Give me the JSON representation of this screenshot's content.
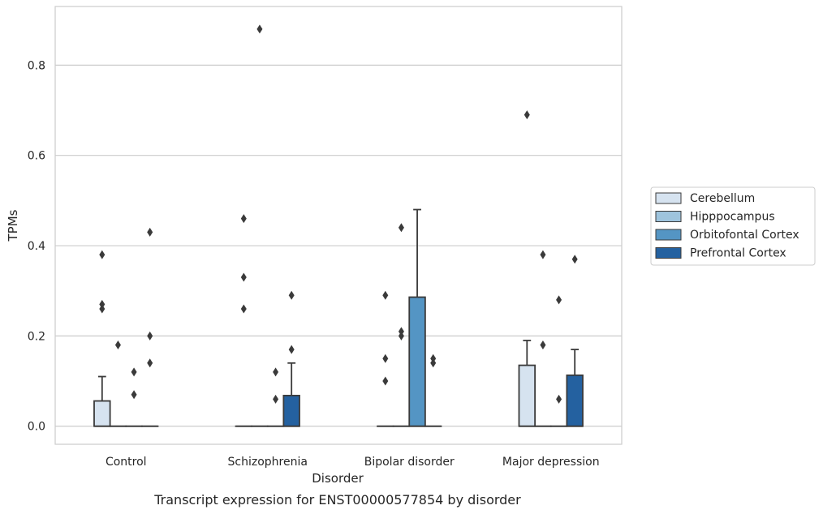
{
  "chart_data": {
    "type": "box",
    "categories": [
      "Control",
      "Schizophrenia",
      "Bipolar disorder",
      "Major depression"
    ],
    "xlabel": "Disorder",
    "ylabel": "TPMs",
    "caption": "Transcript expression for ENST00000577854 by disorder",
    "ylim": [
      -0.04,
      0.93
    ],
    "yticks": [
      0.0,
      0.2,
      0.4,
      0.6,
      0.8
    ],
    "yticks_labels": [
      "0.0",
      "0.2",
      "0.4",
      "0.6",
      "0.8"
    ],
    "grid": "horizontal",
    "legend_position": "right",
    "series": [
      {
        "name": "Cerebellum",
        "color": "#d6e3f0",
        "boxes": [
          {
            "q1": 0.0,
            "median": 0.0,
            "q3": 0.056,
            "whisker_low": 0.0,
            "whisker_high": 0.11,
            "outliers": [
              0.38,
              0.27,
              0.26
            ]
          },
          {
            "q1": 0.0,
            "median": 0.0,
            "q3": 0.0,
            "whisker_low": 0.0,
            "whisker_high": 0.0,
            "outliers": [
              0.46,
              0.33,
              0.26
            ]
          },
          {
            "q1": 0.0,
            "median": 0.0,
            "q3": 0.0,
            "whisker_low": 0.0,
            "whisker_high": 0.0,
            "outliers": [
              0.29,
              0.15,
              0.1
            ]
          },
          {
            "q1": 0.0,
            "median": 0.0,
            "q3": 0.135,
            "whisker_low": 0.0,
            "whisker_high": 0.19,
            "outliers": [
              0.69
            ]
          }
        ]
      },
      {
        "name": "Hipppocampus",
        "color": "#9ec4dd",
        "boxes": [
          {
            "q1": 0.0,
            "median": 0.0,
            "q3": 0.0,
            "whisker_low": 0.0,
            "whisker_high": 0.0,
            "outliers": [
              0.18
            ]
          },
          {
            "q1": 0.0,
            "median": 0.0,
            "q3": 0.0,
            "whisker_low": 0.0,
            "whisker_high": 0.0,
            "outliers": [
              0.88
            ]
          },
          {
            "q1": 0.0,
            "median": 0.0,
            "q3": 0.0,
            "whisker_low": 0.0,
            "whisker_high": 0.0,
            "outliers": [
              0.44,
              0.21,
              0.2
            ]
          },
          {
            "q1": 0.0,
            "median": 0.0,
            "q3": 0.0,
            "whisker_low": 0.0,
            "whisker_high": 0.0,
            "outliers": [
              0.38,
              0.18
            ]
          }
        ]
      },
      {
        "name": "Orbitofontal Cortex",
        "color": "#5495c4",
        "boxes": [
          {
            "q1": 0.0,
            "median": 0.0,
            "q3": 0.0,
            "whisker_low": 0.0,
            "whisker_high": 0.0,
            "outliers": [
              0.12,
              0.07
            ]
          },
          {
            "q1": 0.0,
            "median": 0.0,
            "q3": 0.0,
            "whisker_low": 0.0,
            "whisker_high": 0.0,
            "outliers": [
              0.12,
              0.06
            ]
          },
          {
            "q1": 0.0,
            "median": 0.0,
            "q3": 0.286,
            "whisker_low": 0.0,
            "whisker_high": 0.48,
            "outliers": []
          },
          {
            "q1": 0.0,
            "median": 0.0,
            "q3": 0.0,
            "whisker_low": 0.0,
            "whisker_high": 0.0,
            "outliers": [
              0.28,
              0.06
            ]
          }
        ]
      },
      {
        "name": "Prefrontal Cortex",
        "color": "#2461a0",
        "boxes": [
          {
            "q1": 0.0,
            "median": 0.0,
            "q3": 0.0,
            "whisker_low": 0.0,
            "whisker_high": 0.0,
            "outliers": [
              0.43,
              0.2,
              0.14
            ]
          },
          {
            "q1": 0.0,
            "median": 0.0,
            "q3": 0.068,
            "whisker_low": 0.0,
            "whisker_high": 0.14,
            "outliers": [
              0.29,
              0.17
            ]
          },
          {
            "q1": 0.0,
            "median": 0.0,
            "q3": 0.0,
            "whisker_low": 0.0,
            "whisker_high": 0.0,
            "outliers": [
              0.15,
              0.14
            ]
          },
          {
            "q1": 0.0,
            "median": 0.0,
            "q3": 0.113,
            "whisker_low": 0.0,
            "whisker_high": 0.17,
            "outliers": [
              0.37
            ]
          }
        ]
      }
    ]
  }
}
